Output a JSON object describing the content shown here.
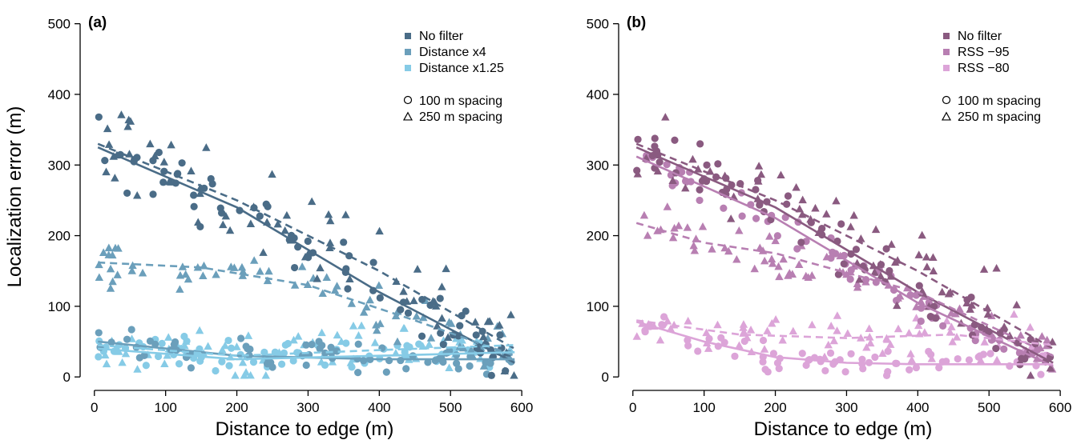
{
  "chart_data": [
    {
      "type": "scatter",
      "panel": "(a)",
      "xlabel": "Distance to edge (m)",
      "ylabel": "Localization error (m)",
      "xlim": [
        -20,
        610
      ],
      "ylim": [
        -10,
        520
      ],
      "xticks": [
        0,
        100,
        200,
        300,
        400,
        500,
        600
      ],
      "yticks": [
        0,
        100,
        200,
        300,
        400,
        500
      ],
      "legend_position": "top-right",
      "grid": false,
      "series": [
        {
          "name": "No filter",
          "color": "#4a6c87",
          "trend_100m": [
            [
              5,
              325
            ],
            [
              200,
              240
            ],
            [
              400,
              120
            ],
            [
              590,
              20
            ]
          ],
          "trend_250m": [
            [
              5,
              330
            ],
            [
              200,
              250
            ],
            [
              400,
              150
            ],
            [
              590,
              40
            ]
          ]
        },
        {
          "name": "Distance x4",
          "color": "#6b9fbb",
          "trend_100m": [
            [
              5,
              50
            ],
            [
              200,
              30
            ],
            [
              400,
              25
            ],
            [
              590,
              25
            ]
          ],
          "trend_250m": [
            [
              5,
              162
            ],
            [
              150,
              155
            ],
            [
              300,
              130
            ],
            [
              450,
              80
            ],
            [
              590,
              30
            ]
          ]
        },
        {
          "name": "Distance x1.25",
          "color": "#86cbe6",
          "trend_100m": [
            [
              5,
              40
            ],
            [
              200,
              25
            ],
            [
              400,
              30
            ],
            [
              590,
              35
            ]
          ],
          "trend_250m": [
            [
              5,
              45
            ],
            [
              200,
              30
            ],
            [
              400,
              38
            ],
            [
              590,
              45
            ]
          ]
        }
      ],
      "shape_legend": [
        {
          "shape": "circle",
          "label": "100 m spacing"
        },
        {
          "shape": "triangle",
          "label": "250 m spacing"
        }
      ]
    },
    {
      "type": "scatter",
      "panel": "(b)",
      "xlabel": "Distance to edge (m)",
      "ylabel": "",
      "xlim": [
        -20,
        610
      ],
      "ylim": [
        -10,
        520
      ],
      "xticks": [
        0,
        100,
        200,
        300,
        400,
        500,
        600
      ],
      "yticks": [
        0,
        100,
        200,
        300,
        400,
        500
      ],
      "legend_position": "top-right",
      "grid": false,
      "series": [
        {
          "name": "No filter",
          "color": "#8a5a80",
          "trend_100m": [
            [
              5,
              325
            ],
            [
              200,
              240
            ],
            [
              400,
              120
            ],
            [
              590,
              20
            ]
          ],
          "trend_250m": [
            [
              5,
              330
            ],
            [
              200,
              250
            ],
            [
              400,
              150
            ],
            [
              590,
              40
            ]
          ]
        },
        {
          "name": "RSS −95",
          "color": "#b87fb2",
          "trend_100m": [
            [
              5,
              312
            ],
            [
              200,
              225
            ],
            [
              400,
              105
            ],
            [
              590,
              15
            ]
          ],
          "trend_250m": [
            [
              5,
              218
            ],
            [
              100,
              190
            ],
            [
              200,
              175
            ],
            [
              400,
              120
            ],
            [
              590,
              30
            ]
          ]
        },
        {
          "name": "RSS −80",
          "color": "#dca4d8",
          "trend_100m": [
            [
              5,
              78
            ],
            [
              100,
              50
            ],
            [
              200,
              28
            ],
            [
              300,
              20
            ],
            [
              400,
              18
            ],
            [
              590,
              18
            ]
          ],
          "trend_250m": [
            [
              5,
              80
            ],
            [
              150,
              60
            ],
            [
              300,
              55
            ],
            [
              450,
              60
            ],
            [
              590,
              45
            ]
          ]
        }
      ],
      "shape_legend": [
        {
          "shape": "circle",
          "label": "100 m spacing"
        },
        {
          "shape": "triangle",
          "label": "250 m spacing"
        }
      ]
    }
  ]
}
